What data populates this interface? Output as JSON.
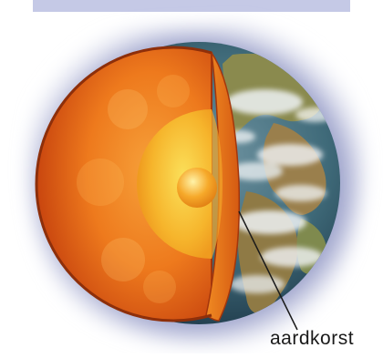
{
  "labels": {
    "crust": "aardkorst"
  }
}
